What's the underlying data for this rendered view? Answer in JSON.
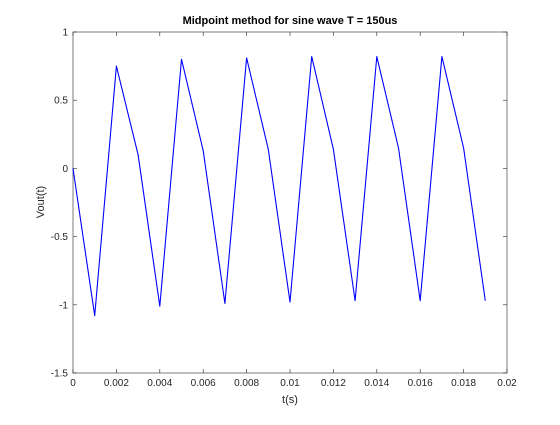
{
  "chart_data": {
    "type": "line",
    "title": "Midpoint method for sine wave T = 150us",
    "xlabel": "t(s)",
    "ylabel": "Vout(t)",
    "xlim": [
      0,
      0.02
    ],
    "ylim": [
      -1.5,
      1
    ],
    "xticks": [
      0,
      0.002,
      0.004,
      0.006,
      0.008,
      0.01,
      0.012,
      0.014,
      0.016,
      0.018,
      0.02
    ],
    "yticks": [
      -1.5,
      -1,
      -0.5,
      0,
      0.5,
      1
    ],
    "xtick_labels": [
      "0",
      "0.002",
      "0.004",
      "0.006",
      "0.008",
      "0.01",
      "0.012",
      "0.014",
      "0.016",
      "0.018",
      "0.02"
    ],
    "ytick_labels": [
      "-1.5",
      "-1",
      "-0.5",
      "0",
      "0.5",
      "1"
    ],
    "grid": false,
    "series": [
      {
        "color": "#0000ff",
        "x": [
          0,
          0.001,
          0.002,
          0.003,
          0.004,
          0.005,
          0.006,
          0.007,
          0.008,
          0.009,
          0.01,
          0.011,
          0.012,
          0.013,
          0.014,
          0.015,
          0.016,
          0.017,
          0.018,
          0.019
        ],
        "y": [
          0,
          -1.08,
          0.75,
          0.1,
          -1.01,
          0.8,
          0.13,
          -0.99,
          0.81,
          0.14,
          -0.98,
          0.82,
          0.14,
          -0.97,
          0.82,
          0.15,
          -0.97,
          0.82,
          0.15,
          -0.97
        ]
      }
    ]
  }
}
